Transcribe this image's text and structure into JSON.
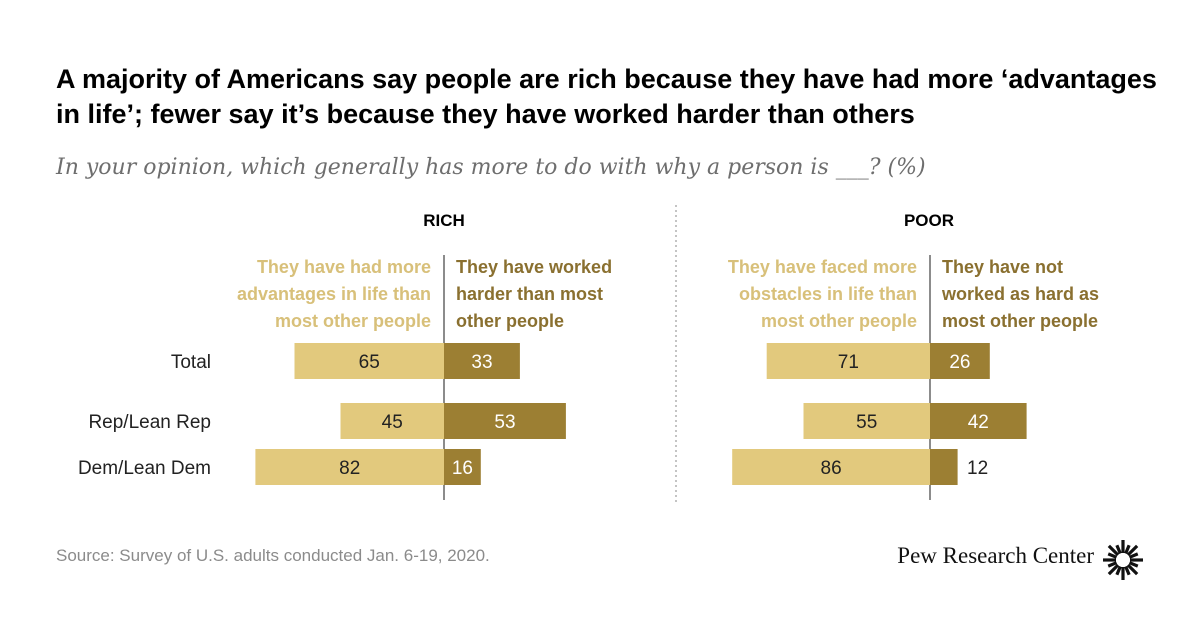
{
  "title": "A majority of Americans say people are rich because they have had more ‘advantages in life’; fewer say it’s because they have worked harder than others",
  "subtitle": "In your opinion, which generally has more to do with why a person is ___? (%)",
  "source": "Source: Survey of U.S. adults conducted Jan. 6-19, 2020.",
  "brand": "Pew Research Center",
  "colors": {
    "light": "#e2c97d",
    "dark": "#9c7f33",
    "light_text": "#d8c07a",
    "dark_text": "#8a7030",
    "divider": "#666666"
  },
  "chart_data": {
    "type": "bar",
    "categories": [
      "Total",
      "Rep/Lean Rep",
      "Dem/Lean Dem"
    ],
    "panels": [
      {
        "title": "RICH",
        "series": [
          {
            "name": "They have had more advantages in life than most other people",
            "lines": [
              "They have had more",
              "advantages in life than",
              "most other people"
            ],
            "values": [
              65,
              45,
              82
            ]
          },
          {
            "name": "They have worked harder than most other people",
            "lines": [
              "They have worked",
              "harder than most",
              "other people"
            ],
            "values": [
              33,
              53,
              16
            ]
          }
        ]
      },
      {
        "title": "POOR",
        "series": [
          {
            "name": "They have faced more obstacles in life than most other people",
            "lines": [
              "They have faced more",
              "obstacles in life than",
              "most other people"
            ],
            "values": [
              71,
              55,
              86
            ]
          },
          {
            "name": "They have not worked as hard as most other people",
            "lines": [
              "They have not",
              "worked as hard as",
              "most other people"
            ],
            "values": [
              26,
              42,
              12
            ]
          }
        ]
      }
    ]
  }
}
